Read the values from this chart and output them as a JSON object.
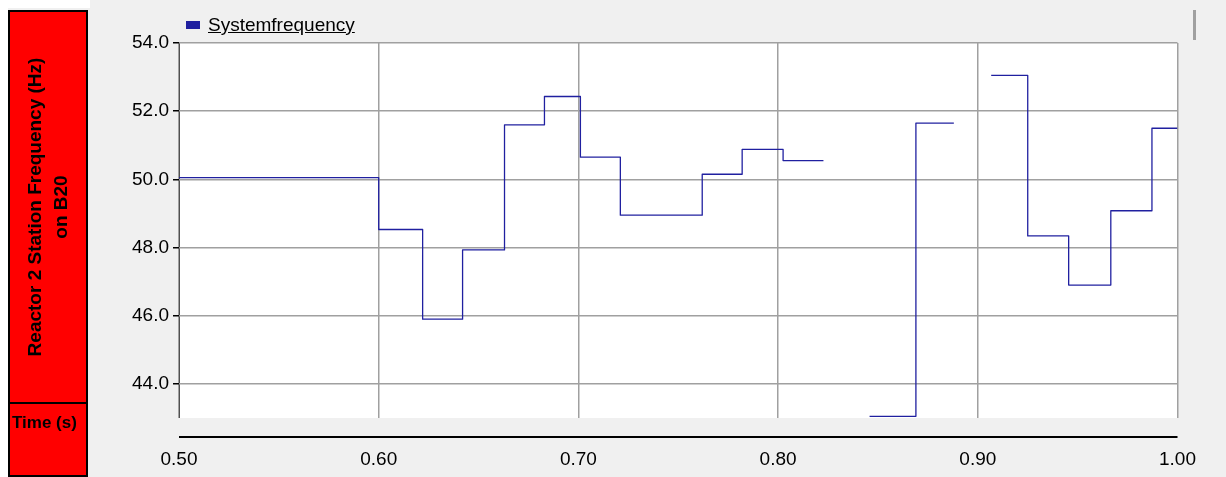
{
  "chart_data": {
    "type": "step",
    "xlabel": "Time (s)",
    "ylabel": "Reactor 2 Station Frequency (Hz) on B20",
    "x": [
      0.5,
      0.6,
      0.622,
      0.642,
      0.663,
      0.683,
      0.701,
      0.721,
      0.762,
      0.782,
      0.8025,
      0.8227,
      0.8228,
      0.8458,
      0.869,
      0.888,
      0.8881,
      0.9067,
      0.925,
      0.9455,
      0.9666,
      0.9872,
      1.0
    ],
    "series": [
      {
        "name": "Systemfrequency",
        "color": "#2020a0",
        "values": [
          50.05,
          48.53,
          45.9,
          47.93,
          51.6,
          52.43,
          50.65,
          48.95,
          50.15,
          50.88,
          50.55,
          50.55,
          null,
          43.05,
          51.65,
          51.65,
          null,
          53.05,
          48.34,
          46.9,
          49.08,
          51.5,
          51.5
        ]
      }
    ],
    "xlim": [
      0.5,
      1.0
    ],
    "xticks": [
      {
        "value": 0.5,
        "label": "0.50"
      },
      {
        "value": 0.6,
        "label": "0.60"
      },
      {
        "value": 0.7,
        "label": "0.70"
      },
      {
        "value": 0.8,
        "label": "0.80"
      },
      {
        "value": 0.9,
        "label": "0.90"
      },
      {
        "value": 1.0,
        "label": "1.00"
      }
    ],
    "ylim": [
      43,
      54
    ],
    "yticks": [
      {
        "value": 44,
        "label": "44.0"
      },
      {
        "value": 46,
        "label": "46.0"
      },
      {
        "value": 48,
        "label": "48.0"
      },
      {
        "value": 50,
        "label": "50.0"
      },
      {
        "value": 52,
        "label": "52.0"
      },
      {
        "value": 54,
        "label": "54.0"
      }
    ],
    "grid": true,
    "legend": "top left"
  }
}
